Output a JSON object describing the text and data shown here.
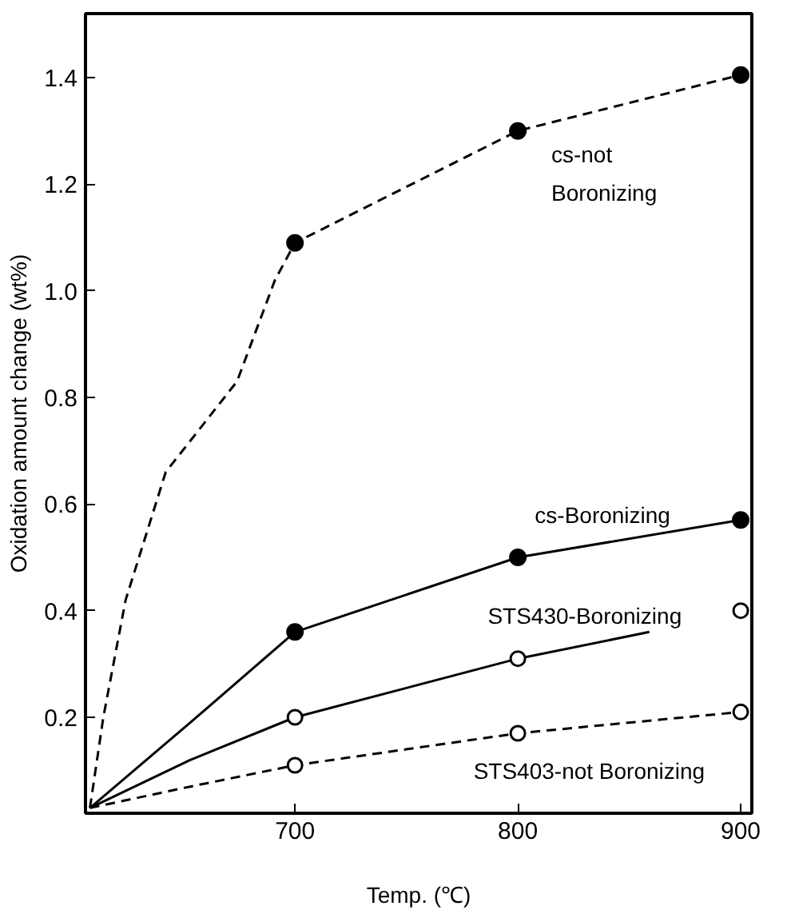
{
  "chart_data": {
    "type": "line",
    "xlabel": "Temp. (℃)",
    "ylabel": "Oxidation amount change (wt%)",
    "xlim": [
      606,
      905
    ],
    "ylim": [
      0.02,
      1.52
    ],
    "xticks": [
      700,
      800,
      900
    ],
    "yticks": [
      0.2,
      0.4,
      0.6,
      0.8,
      {
        "value": 1.0,
        "label": "1.0"
      },
      1.2,
      1.4
    ],
    "grid": false,
    "series": [
      {
        "name": "cs-not Boronizing",
        "line_style": "dashed",
        "color": "#000000",
        "x": [
          608,
          614,
          624,
          642,
          674,
          691,
          700,
          800,
          900
        ],
        "values": [
          0.03,
          0.2,
          0.42,
          0.66,
          0.83,
          1.02,
          1.09,
          1.3,
          1.405
        ]
      },
      {
        "name": "cs-Boronizing",
        "line_style": "solid",
        "color": "#000000",
        "x": [
          608,
          653,
          700,
          800,
          900
        ],
        "values": [
          0.03,
          0.19,
          0.36,
          0.5,
          0.57
        ]
      },
      {
        "name": "STS430-Boronizing",
        "line_style": "solid",
        "color": "#000000",
        "x": [
          608,
          653,
          700,
          800,
          859
        ],
        "values": [
          0.03,
          0.12,
          0.2,
          0.31,
          0.36
        ]
      },
      {
        "name": "STS403-not Boronizing",
        "line_style": "dashed",
        "color": "#000000",
        "x": [
          608,
          653,
          700,
          800,
          900
        ],
        "values": [
          0.03,
          0.07,
          0.11,
          0.17,
          0.21
        ]
      },
      {
        "type": "scatter",
        "marker": "circle",
        "color": "#000000",
        "x": [
          700,
          800,
          900,
          700,
          800,
          900
        ],
        "values": [
          1.09,
          1.3,
          1.405,
          0.36,
          0.5,
          0.57
        ]
      },
      {
        "type": "scatter",
        "marker": "circle_open",
        "color": "#000000",
        "x": [
          700,
          800,
          900,
          700,
          800,
          900
        ],
        "values": [
          0.2,
          0.31,
          0.4,
          0.11,
          0.17,
          0.21
        ]
      }
    ]
  }
}
